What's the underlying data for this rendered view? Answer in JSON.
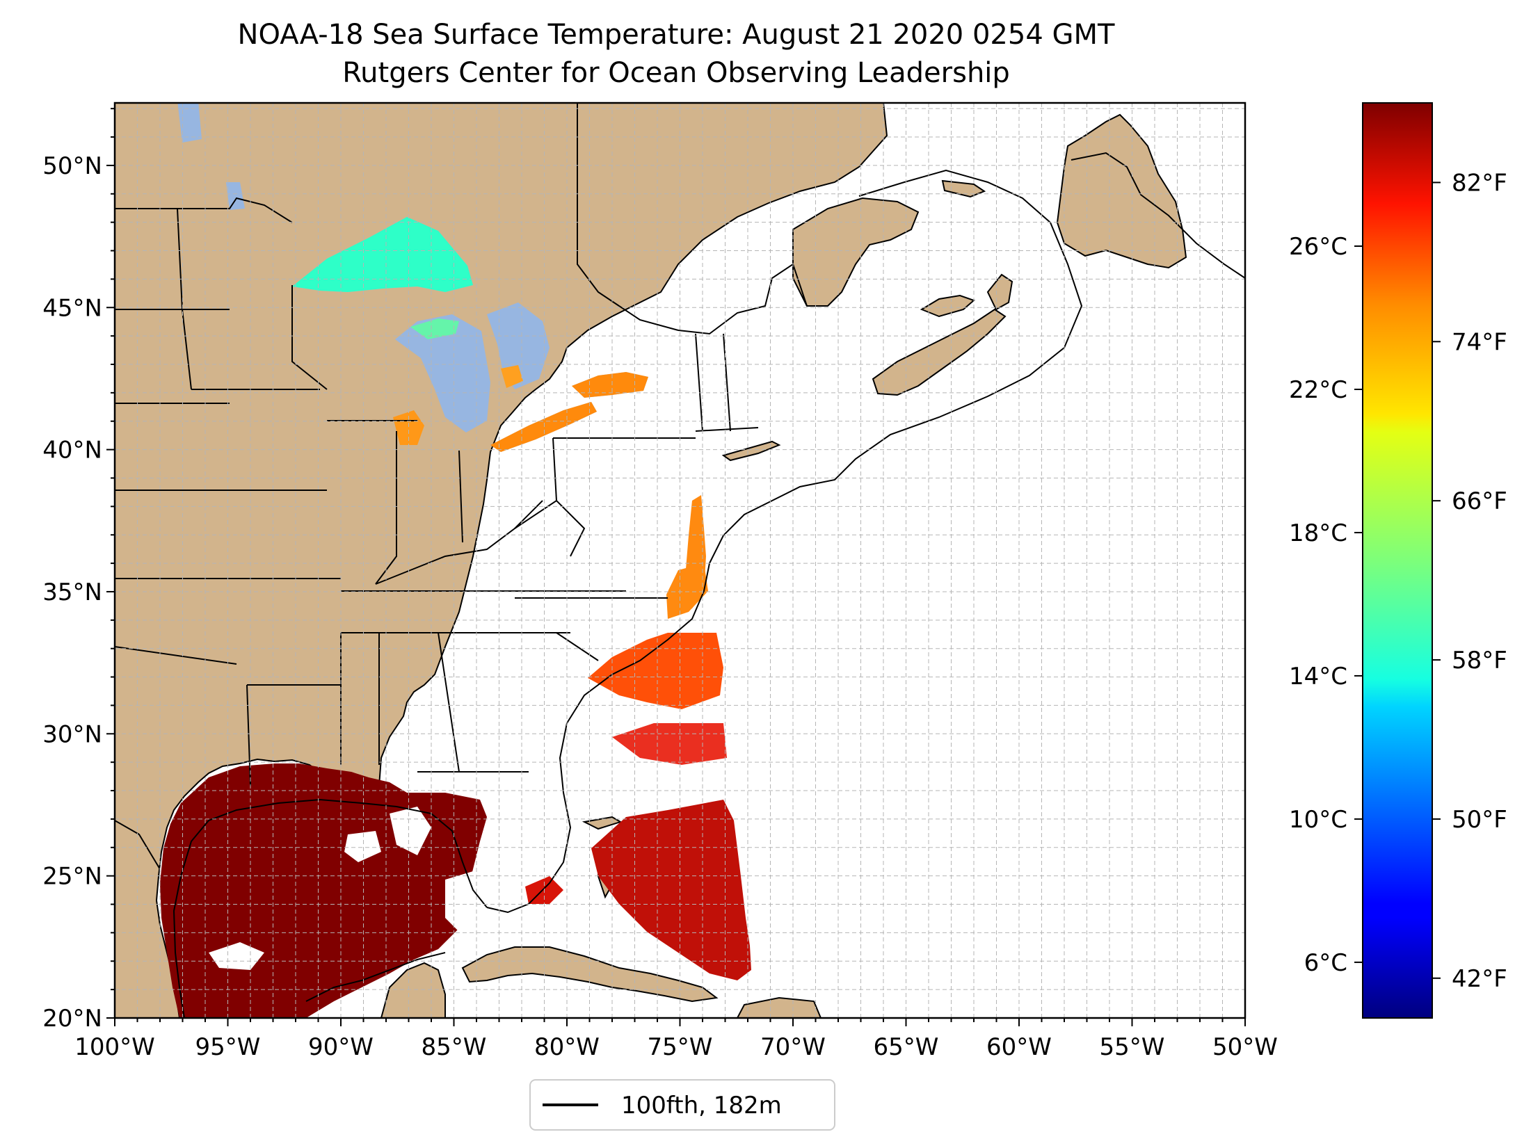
{
  "title": "NOAA-18 Sea Surface Temperature: August 21 2020 0254 GMT",
  "subtitle": "Rutgers Center for Ocean Observing Leadership",
  "map": {
    "lon_range": [
      -100,
      -50
    ],
    "lat_range": [
      20,
      52.2
    ],
    "grid_step_deg": 1,
    "x_ticks": [
      {
        "value": -100,
        "label": "100°W"
      },
      {
        "value": -95,
        "label": "95°W"
      },
      {
        "value": -90,
        "label": "90°W"
      },
      {
        "value": -85,
        "label": "85°W"
      },
      {
        "value": -80,
        "label": "80°W"
      },
      {
        "value": -75,
        "label": "75°W"
      },
      {
        "value": -70,
        "label": "70°W"
      },
      {
        "value": -65,
        "label": "65°W"
      },
      {
        "value": -60,
        "label": "60°W"
      },
      {
        "value": -55,
        "label": "55°W"
      },
      {
        "value": -50,
        "label": "50°W"
      }
    ],
    "y_ticks": [
      {
        "value": 20,
        "label": "20°N"
      },
      {
        "value": 25,
        "label": "25°N"
      },
      {
        "value": 30,
        "label": "30°N"
      },
      {
        "value": 35,
        "label": "35°N"
      },
      {
        "value": 40,
        "label": "40°N"
      },
      {
        "value": 45,
        "label": "45°N"
      },
      {
        "value": 50,
        "label": "50°N"
      }
    ],
    "colors": {
      "land": "#d2b48c",
      "lakes": "#97b6e1",
      "ocean": "#ffffff",
      "grid": "#b5b5b5",
      "border": "#000000"
    }
  },
  "colorbar": {
    "colormap": "jet",
    "range_f": [
      40.0,
      86.0
    ],
    "f_ticks": [
      {
        "value": 42,
        "label": "42°F"
      },
      {
        "value": 50,
        "label": "50°F"
      },
      {
        "value": 58,
        "label": "58°F"
      },
      {
        "value": 66,
        "label": "66°F"
      },
      {
        "value": 74,
        "label": "74°F"
      },
      {
        "value": 82,
        "label": "82°F"
      }
    ],
    "c_ticks": [
      {
        "value": 6,
        "label": "6°C"
      },
      {
        "value": 10,
        "label": "10°C"
      },
      {
        "value": 14,
        "label": "14°C"
      },
      {
        "value": 18,
        "label": "18°C"
      },
      {
        "value": 22,
        "label": "22°C"
      },
      {
        "value": 26,
        "label": "26°C"
      }
    ]
  },
  "legend": {
    "label": "100fth, 182m",
    "line_color": "#000000"
  }
}
